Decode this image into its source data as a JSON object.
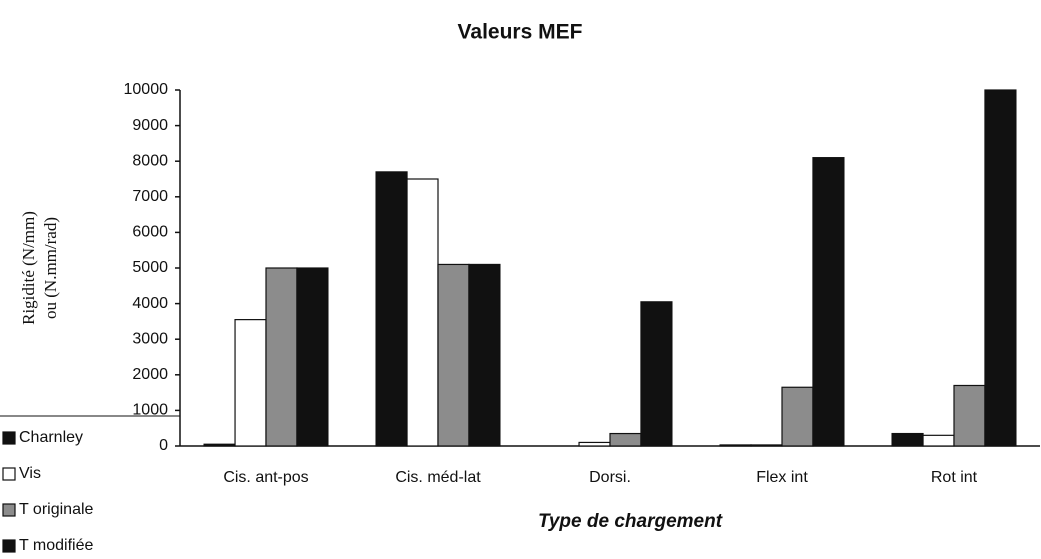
{
  "chart_data": {
    "type": "bar",
    "title": "Valeurs MEF",
    "x_label": "Type de chargement",
    "y_label": [
      "Rigidité (N/mm)",
      "ou (N.mm/rad)"
    ],
    "categories": [
      "Cis. ant-pos",
      "Cis. méd-lat",
      "Dorsi.",
      "Flex int",
      "Rot int"
    ],
    "series": [
      {
        "name": "Charnley",
        "color": "#111111",
        "values": [
          50,
          7700,
          0,
          30,
          350
        ]
      },
      {
        "name": "Vis",
        "color": "#ffffff",
        "values": [
          3550,
          7500,
          100,
          30,
          300
        ]
      },
      {
        "name": "T originale",
        "color": "#8c8c8c",
        "values": [
          5000,
          5100,
          350,
          1650,
          1700
        ]
      },
      {
        "name": "T modifiée",
        "color": "#111111",
        "values": [
          5000,
          5100,
          4050,
          8100,
          10000
        ]
      }
    ],
    "ylim": [
      0,
      10000
    ],
    "yticks": [
      0,
      1000,
      2000,
      3000,
      4000,
      5000,
      6000,
      7000,
      8000,
      9000,
      10000
    ],
    "grid": false,
    "legend": "bottom-left"
  }
}
